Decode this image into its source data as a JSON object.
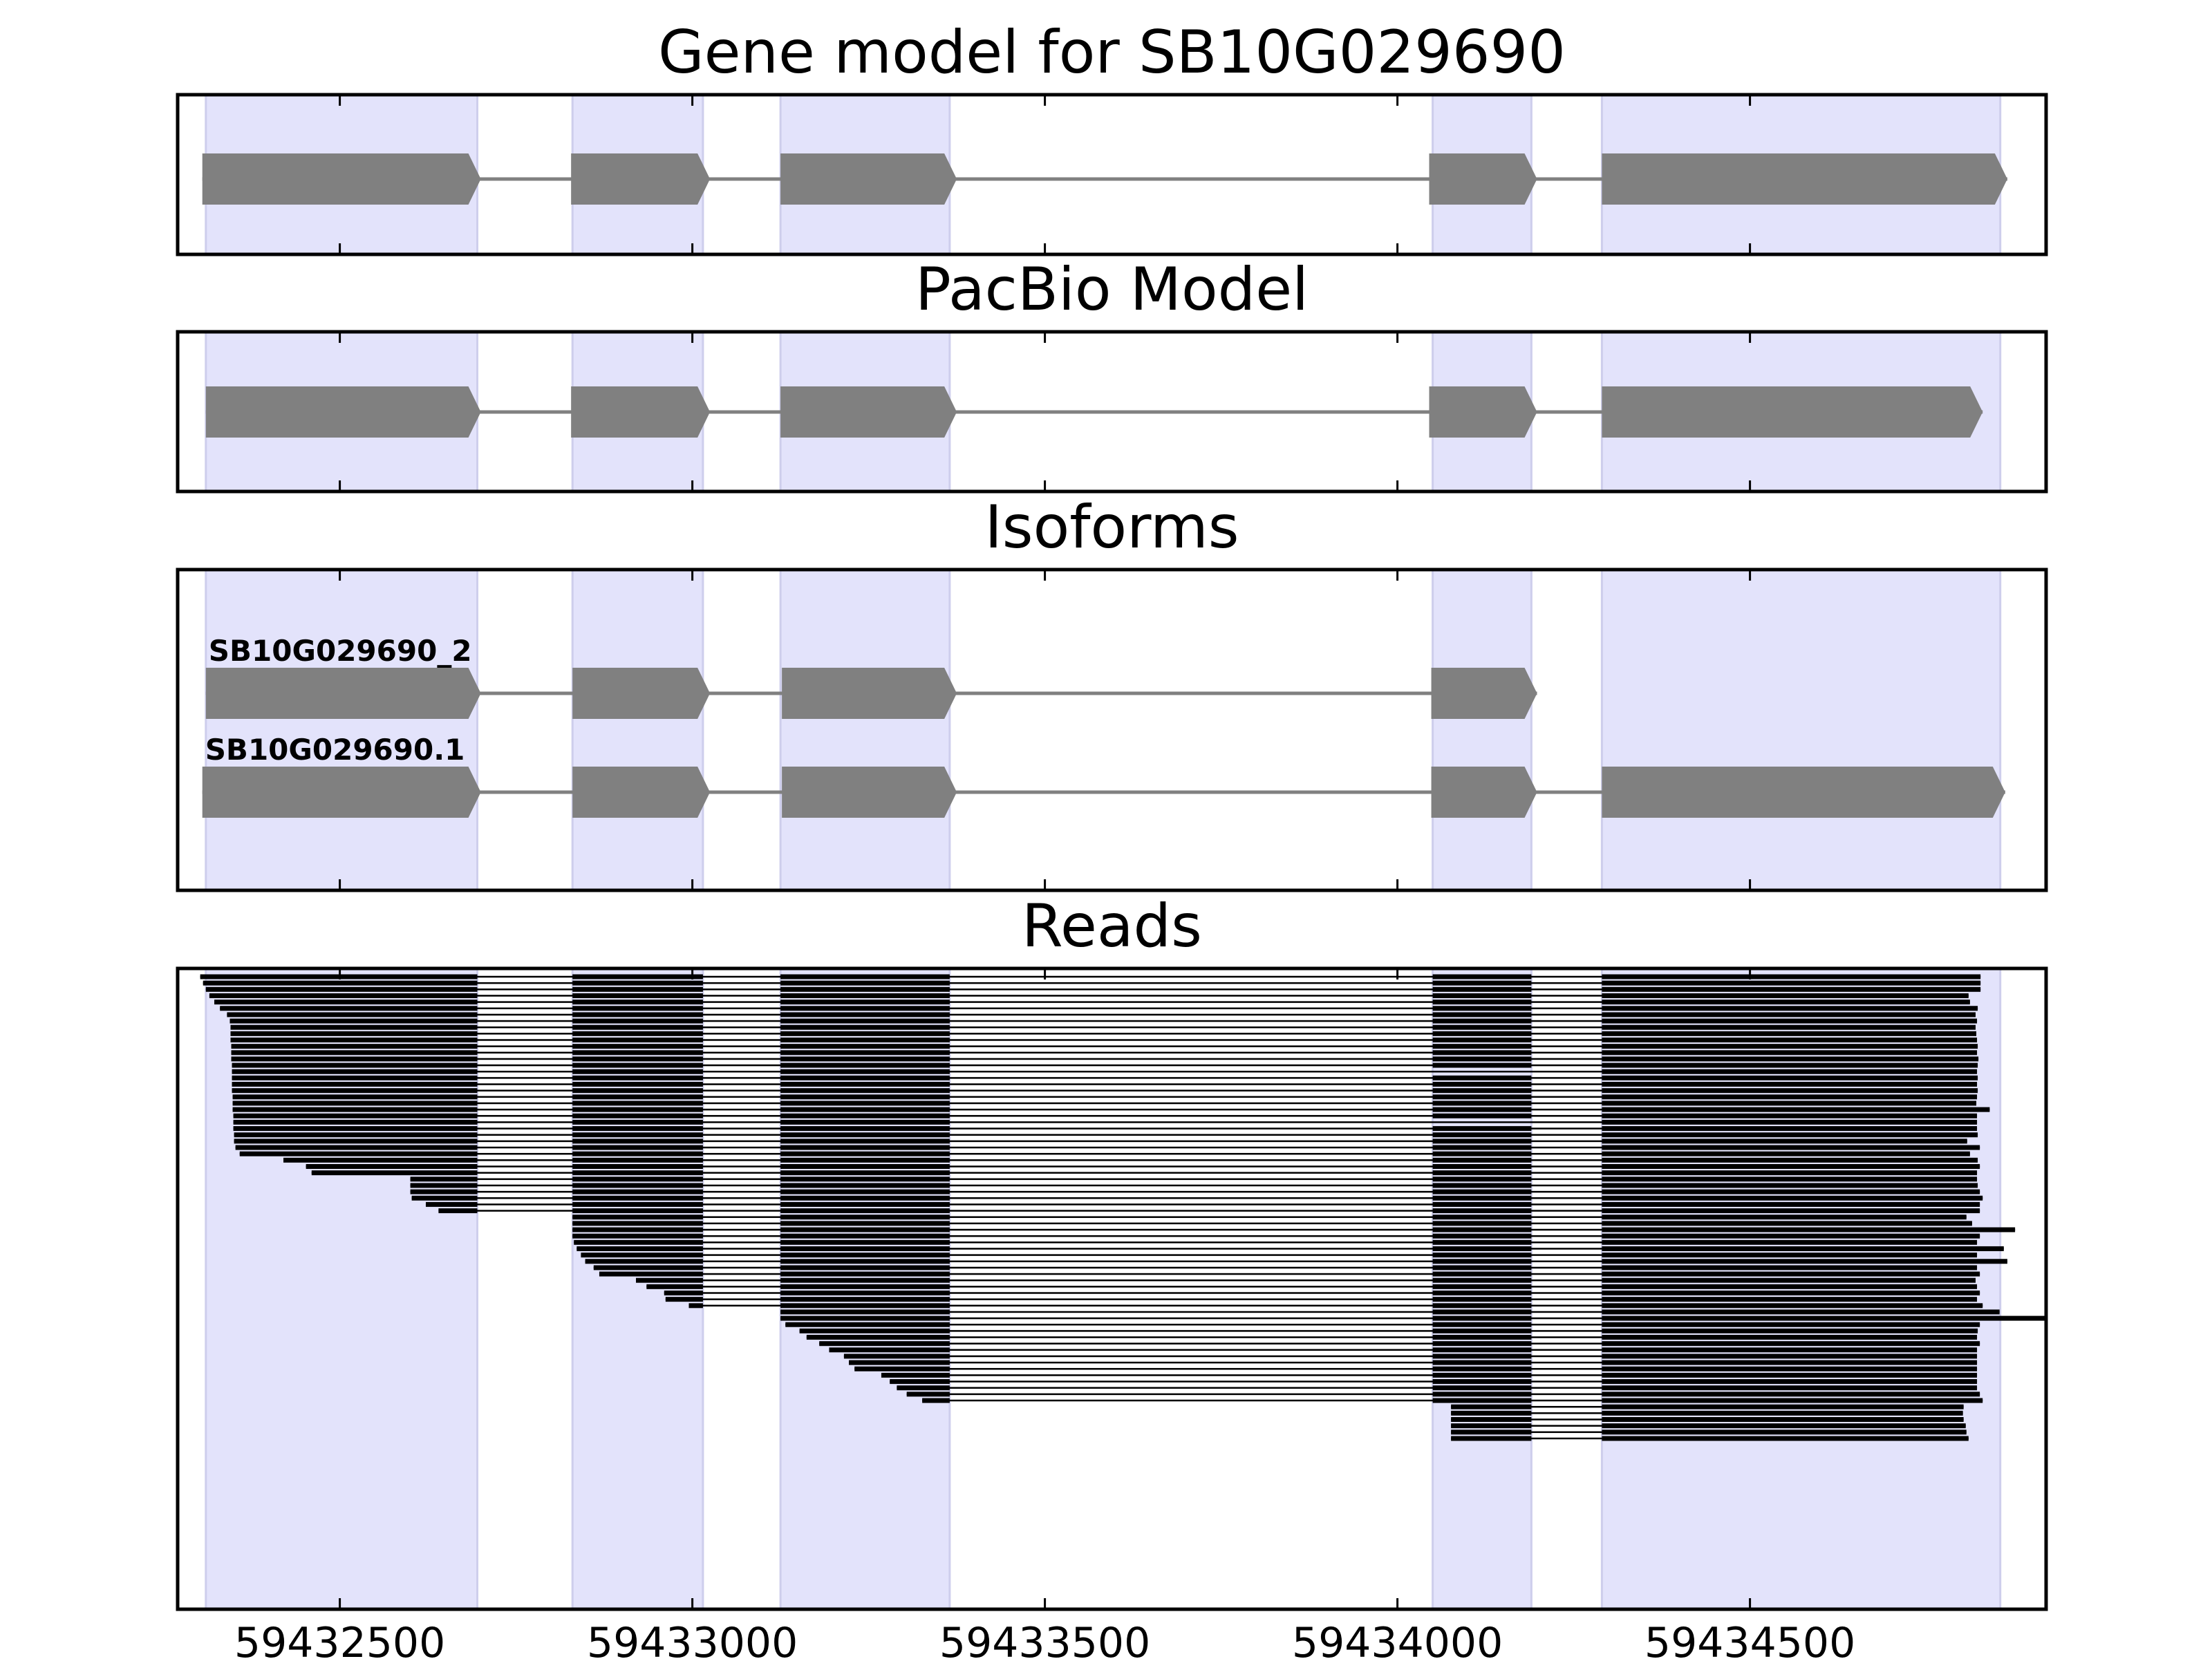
{
  "chart_data": {
    "type": "gene-model-track",
    "xlim": [
      59432270,
      59434920
    ],
    "xticks": [
      59432500,
      59433000,
      59433500,
      59434000,
      59434500
    ],
    "xtick_labels": [
      "59432500",
      "59433000",
      "59433500",
      "59434000",
      "59434500"
    ],
    "exon_bands": [
      [
        59432310,
        59432695
      ],
      [
        59432830,
        59433015
      ],
      [
        59433125,
        59433365
      ],
      [
        59434050,
        59434190
      ],
      [
        59434290,
        59434855
      ]
    ],
    "panels": [
      {
        "key": "gene",
        "title": "Gene model for SB10G029690",
        "tracks": [
          {
            "label": "",
            "exons": [
              [
                59432305,
                59432700
              ],
              [
                59432828,
                59433025
              ],
              [
                59433125,
                59433375
              ],
              [
                59434045,
                59434198
              ],
              [
                59434290,
                59434865
              ]
            ]
          }
        ]
      },
      {
        "key": "pacbio",
        "title": "PacBio Model",
        "tracks": [
          {
            "label": "",
            "exons": [
              [
                59432310,
                59432700
              ],
              [
                59432828,
                59433025
              ],
              [
                59433125,
                59433375
              ],
              [
                59434045,
                59434198
              ],
              [
                59434290,
                59434830
              ]
            ]
          }
        ]
      },
      {
        "key": "isoforms",
        "title": "Isoforms",
        "tracks": [
          {
            "label": "SB10G029690_2",
            "exons": [
              [
                59432310,
                59432700
              ],
              [
                59432830,
                59433025
              ],
              [
                59433127,
                59433375
              ],
              [
                59434048,
                59434198
              ]
            ]
          },
          {
            "label": "SB10G029690.1",
            "exons": [
              [
                59432305,
                59432700
              ],
              [
                59432830,
                59433025
              ],
              [
                59433127,
                59433375
              ],
              [
                59434048,
                59434198
              ],
              [
                59434290,
                59434862
              ]
            ]
          }
        ]
      },
      {
        "key": "reads",
        "title": "Reads",
        "reads": [
          {
            "s": 59432302,
            "e": 59434827
          },
          {
            "s": 59432306,
            "e": 59434827
          },
          {
            "s": 59432310,
            "e": 59434827
          },
          {
            "s": 59432315,
            "e": 59434810
          },
          {
            "s": 59432322,
            "e": 59434812
          },
          {
            "s": 59432330,
            "e": 59434823
          },
          {
            "s": 59432340,
            "e": 59434820
          },
          {
            "s": 59432344,
            "e": 59434822
          },
          {
            "s": 59432345,
            "e": 59434820
          },
          {
            "s": 59432345,
            "e": 59434821
          },
          {
            "s": 59432345,
            "e": 59434822
          },
          {
            "s": 59432346,
            "e": 59434823
          },
          {
            "s": 59432346,
            "e": 59434822
          },
          {
            "s": 59432346,
            "e": 59434824
          },
          {
            "s": 59432347,
            "e": 59434823
          },
          {
            "s": 59432347,
            "e": 59434822,
            "skip4": true
          },
          {
            "s": 59432347,
            "e": 59434823
          },
          {
            "s": 59432347,
            "e": 59434822
          },
          {
            "s": 59432347,
            "e": 59434823
          },
          {
            "s": 59432348,
            "e": 59434822
          },
          {
            "s": 59432348,
            "e": 59434821
          },
          {
            "s": 59432348,
            "e": 59434840
          },
          {
            "s": 59432349,
            "e": 59434822
          },
          {
            "s": 59432349,
            "e": 59434822,
            "skip4": true
          },
          {
            "s": 59432349,
            "e": 59434822
          },
          {
            "s": 59432350,
            "e": 59434823
          },
          {
            "s": 59432350,
            "e": 59434808
          },
          {
            "s": 59432352,
            "e": 59434826
          },
          {
            "s": 59432358,
            "e": 59434812
          },
          {
            "s": 59432420,
            "e": 59434823
          },
          {
            "s": 59432452,
            "e": 59434826
          },
          {
            "s": 59432460,
            "e": 59434822
          },
          {
            "s": 59432600,
            "e": 59434822
          },
          {
            "s": 59432600,
            "e": 59434823
          },
          {
            "s": 59432600,
            "e": 59434826
          },
          {
            "s": 59432602,
            "e": 59434830
          },
          {
            "s": 59432622,
            "e": 59434826
          },
          {
            "s": 59432640,
            "e": 59434826
          },
          {
            "s": 59432825,
            "e": 59434807
          },
          {
            "s": 59432827,
            "e": 59434815
          },
          {
            "s": 59432829,
            "e": 59434876
          },
          {
            "s": 59432830,
            "e": 59434826
          },
          {
            "s": 59432832,
            "e": 59434822
          },
          {
            "s": 59432836,
            "e": 59434860
          },
          {
            "s": 59432842,
            "e": 59434822
          },
          {
            "s": 59432848,
            "e": 59434865
          },
          {
            "s": 59432860,
            "e": 59434822
          },
          {
            "s": 59432868,
            "e": 59434826
          },
          {
            "s": 59432920,
            "e": 59434820
          },
          {
            "s": 59432935,
            "e": 59434822
          },
          {
            "s": 59432960,
            "e": 59434826
          },
          {
            "s": 59432962,
            "e": 59434822
          },
          {
            "s": 59432995,
            "e": 59434830
          },
          {
            "s": 59433124,
            "e": 59434854
          },
          {
            "s": 59433125,
            "e": 59434922
          },
          {
            "s": 59433132,
            "e": 59434826
          },
          {
            "s": 59433152,
            "e": 59434823
          },
          {
            "s": 59433162,
            "e": 59434822
          },
          {
            "s": 59433180,
            "e": 59434826
          },
          {
            "s": 59433194,
            "e": 59434822
          },
          {
            "s": 59433215,
            "e": 59434822
          },
          {
            "s": 59433222,
            "e": 59434822
          },
          {
            "s": 59433230,
            "e": 59434822
          },
          {
            "s": 59433268,
            "e": 59434822
          },
          {
            "s": 59433280,
            "e": 59434822
          },
          {
            "s": 59433290,
            "e": 59434822
          },
          {
            "s": 59433304,
            "e": 59434826
          },
          {
            "s": 59433326,
            "e": 59434830
          },
          {
            "s": 59434076,
            "e": 59434803
          },
          {
            "s": 59434076,
            "e": 59434802
          },
          {
            "s": 59434076,
            "e": 59434803
          },
          {
            "s": 59434076,
            "e": 59434806
          },
          {
            "s": 59434076,
            "e": 59434807
          },
          {
            "s": 59434076,
            "e": 59434810
          }
        ]
      }
    ]
  }
}
